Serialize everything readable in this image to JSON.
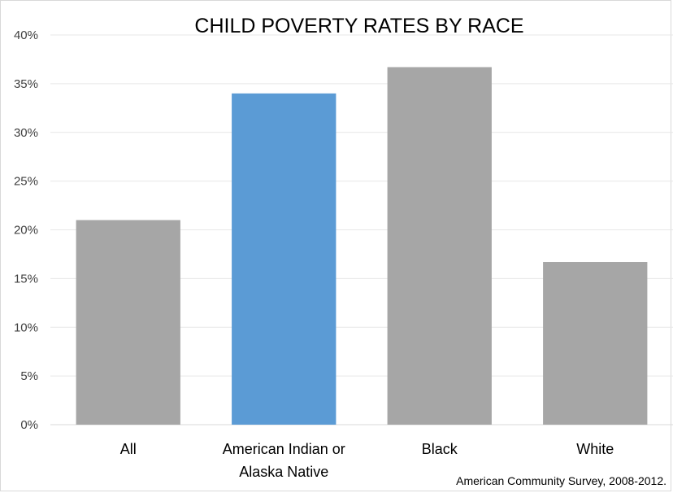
{
  "chart_data": {
    "type": "bar",
    "title": "CHILD POVERTY RATES BY RACE",
    "categories": [
      [
        "All"
      ],
      [
        "American Indian or",
        "Alaska Native"
      ],
      [
        "Black"
      ],
      [
        "White"
      ]
    ],
    "values": [
      21.0,
      34.0,
      36.7,
      16.7
    ],
    "colors": [
      "#a6a6a6",
      "#5b9bd5",
      "#a6a6a6",
      "#a6a6a6"
    ],
    "ylim": [
      0,
      40
    ],
    "yticks": [
      0,
      5,
      10,
      15,
      20,
      25,
      30,
      35,
      40
    ],
    "ytick_labels": [
      "0%",
      "5%",
      "10%",
      "15%",
      "20%",
      "25%",
      "30%",
      "35%",
      "40%"
    ],
    "grid": true,
    "legend": "none",
    "source": "American Community Survey, 2008-2012."
  }
}
